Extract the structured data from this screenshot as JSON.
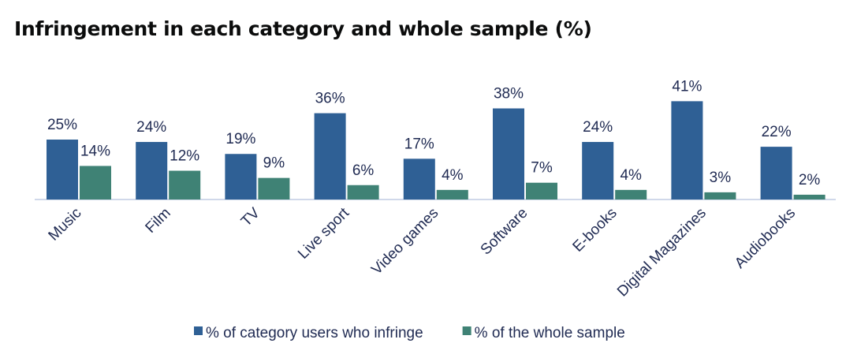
{
  "chart_data": {
    "type": "bar",
    "title": "Infringement in each category and whole sample (%)",
    "categories": [
      "Music",
      "Film",
      "TV",
      "Live sport",
      "Video games",
      "Software",
      "E-books",
      "Digital Magazines",
      "Audiobooks"
    ],
    "series": [
      {
        "name": "% of category users who infringe",
        "color": "#2f6095",
        "values": [
          25,
          24,
          19,
          36,
          17,
          38,
          24,
          41,
          22
        ]
      },
      {
        "name": "% of the whole sample",
        "color": "#3f8275",
        "values": [
          14,
          12,
          9,
          6,
          4,
          7,
          4,
          3,
          2
        ]
      }
    ],
    "value_suffix": "%",
    "ylim": [
      0,
      45
    ],
    "grid": false,
    "legend": "bottom"
  }
}
